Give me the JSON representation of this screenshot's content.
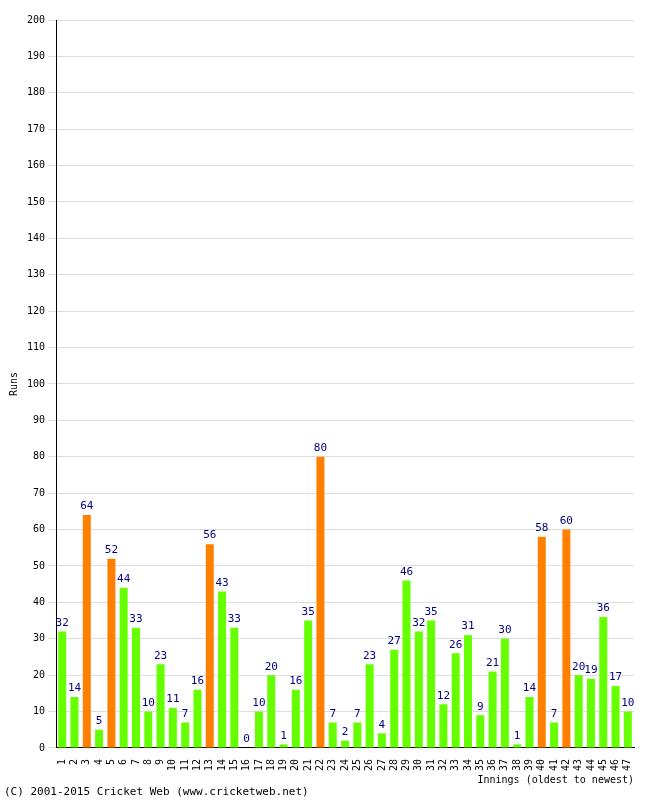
{
  "chart_data": {
    "type": "bar",
    "categories": [
      "1",
      "2",
      "3",
      "4",
      "5",
      "6",
      "7",
      "8",
      "9",
      "10",
      "11",
      "12",
      "13",
      "14",
      "15",
      "16",
      "17",
      "18",
      "19",
      "20",
      "21",
      "22",
      "23",
      "24",
      "25",
      "26",
      "27",
      "28",
      "29",
      "30",
      "31",
      "32",
      "33",
      "34",
      "35",
      "36",
      "37",
      "38",
      "39",
      "40",
      "41",
      "42",
      "43",
      "44",
      "45",
      "46",
      "47"
    ],
    "values": [
      32,
      14,
      64,
      5,
      52,
      44,
      33,
      10,
      23,
      11,
      7,
      16,
      56,
      43,
      33,
      0,
      10,
      20,
      1,
      16,
      35,
      80,
      7,
      2,
      7,
      23,
      4,
      27,
      46,
      32,
      35,
      12,
      26,
      31,
      9,
      21,
      30,
      1,
      14,
      58,
      7,
      60,
      20,
      19,
      36,
      17,
      10
    ],
    "colors": [
      "#66ff00",
      "#66ff00",
      "#ff8000",
      "#66ff00",
      "#ff8000",
      "#66ff00",
      "#66ff00",
      "#66ff00",
      "#66ff00",
      "#66ff00",
      "#66ff00",
      "#66ff00",
      "#ff8000",
      "#66ff00",
      "#66ff00",
      "#66ff00",
      "#66ff00",
      "#66ff00",
      "#66ff00",
      "#66ff00",
      "#66ff00",
      "#ff8000",
      "#66ff00",
      "#66ff00",
      "#66ff00",
      "#66ff00",
      "#66ff00",
      "#66ff00",
      "#66ff00",
      "#66ff00",
      "#66ff00",
      "#66ff00",
      "#66ff00",
      "#66ff00",
      "#66ff00",
      "#66ff00",
      "#66ff00",
      "#66ff00",
      "#66ff00",
      "#ff8000",
      "#66ff00",
      "#ff8000",
      "#66ff00",
      "#66ff00",
      "#66ff00",
      "#66ff00",
      "#66ff00"
    ],
    "x_label": "Innings (oldest to newest)",
    "y_label": "Runs",
    "annotations": [
      "(C) 2001-2015 Cricket Web (www.cricketweb.net)"
    ],
    "ylim": [
      0,
      200
    ],
    "yticks": [
      0,
      10,
      20,
      30,
      40,
      50,
      60,
      70,
      80,
      90,
      100,
      110,
      120,
      130,
      140,
      150,
      160,
      170,
      180,
      190,
      200
    ],
    "grid": true,
    "data_labels": true
  }
}
